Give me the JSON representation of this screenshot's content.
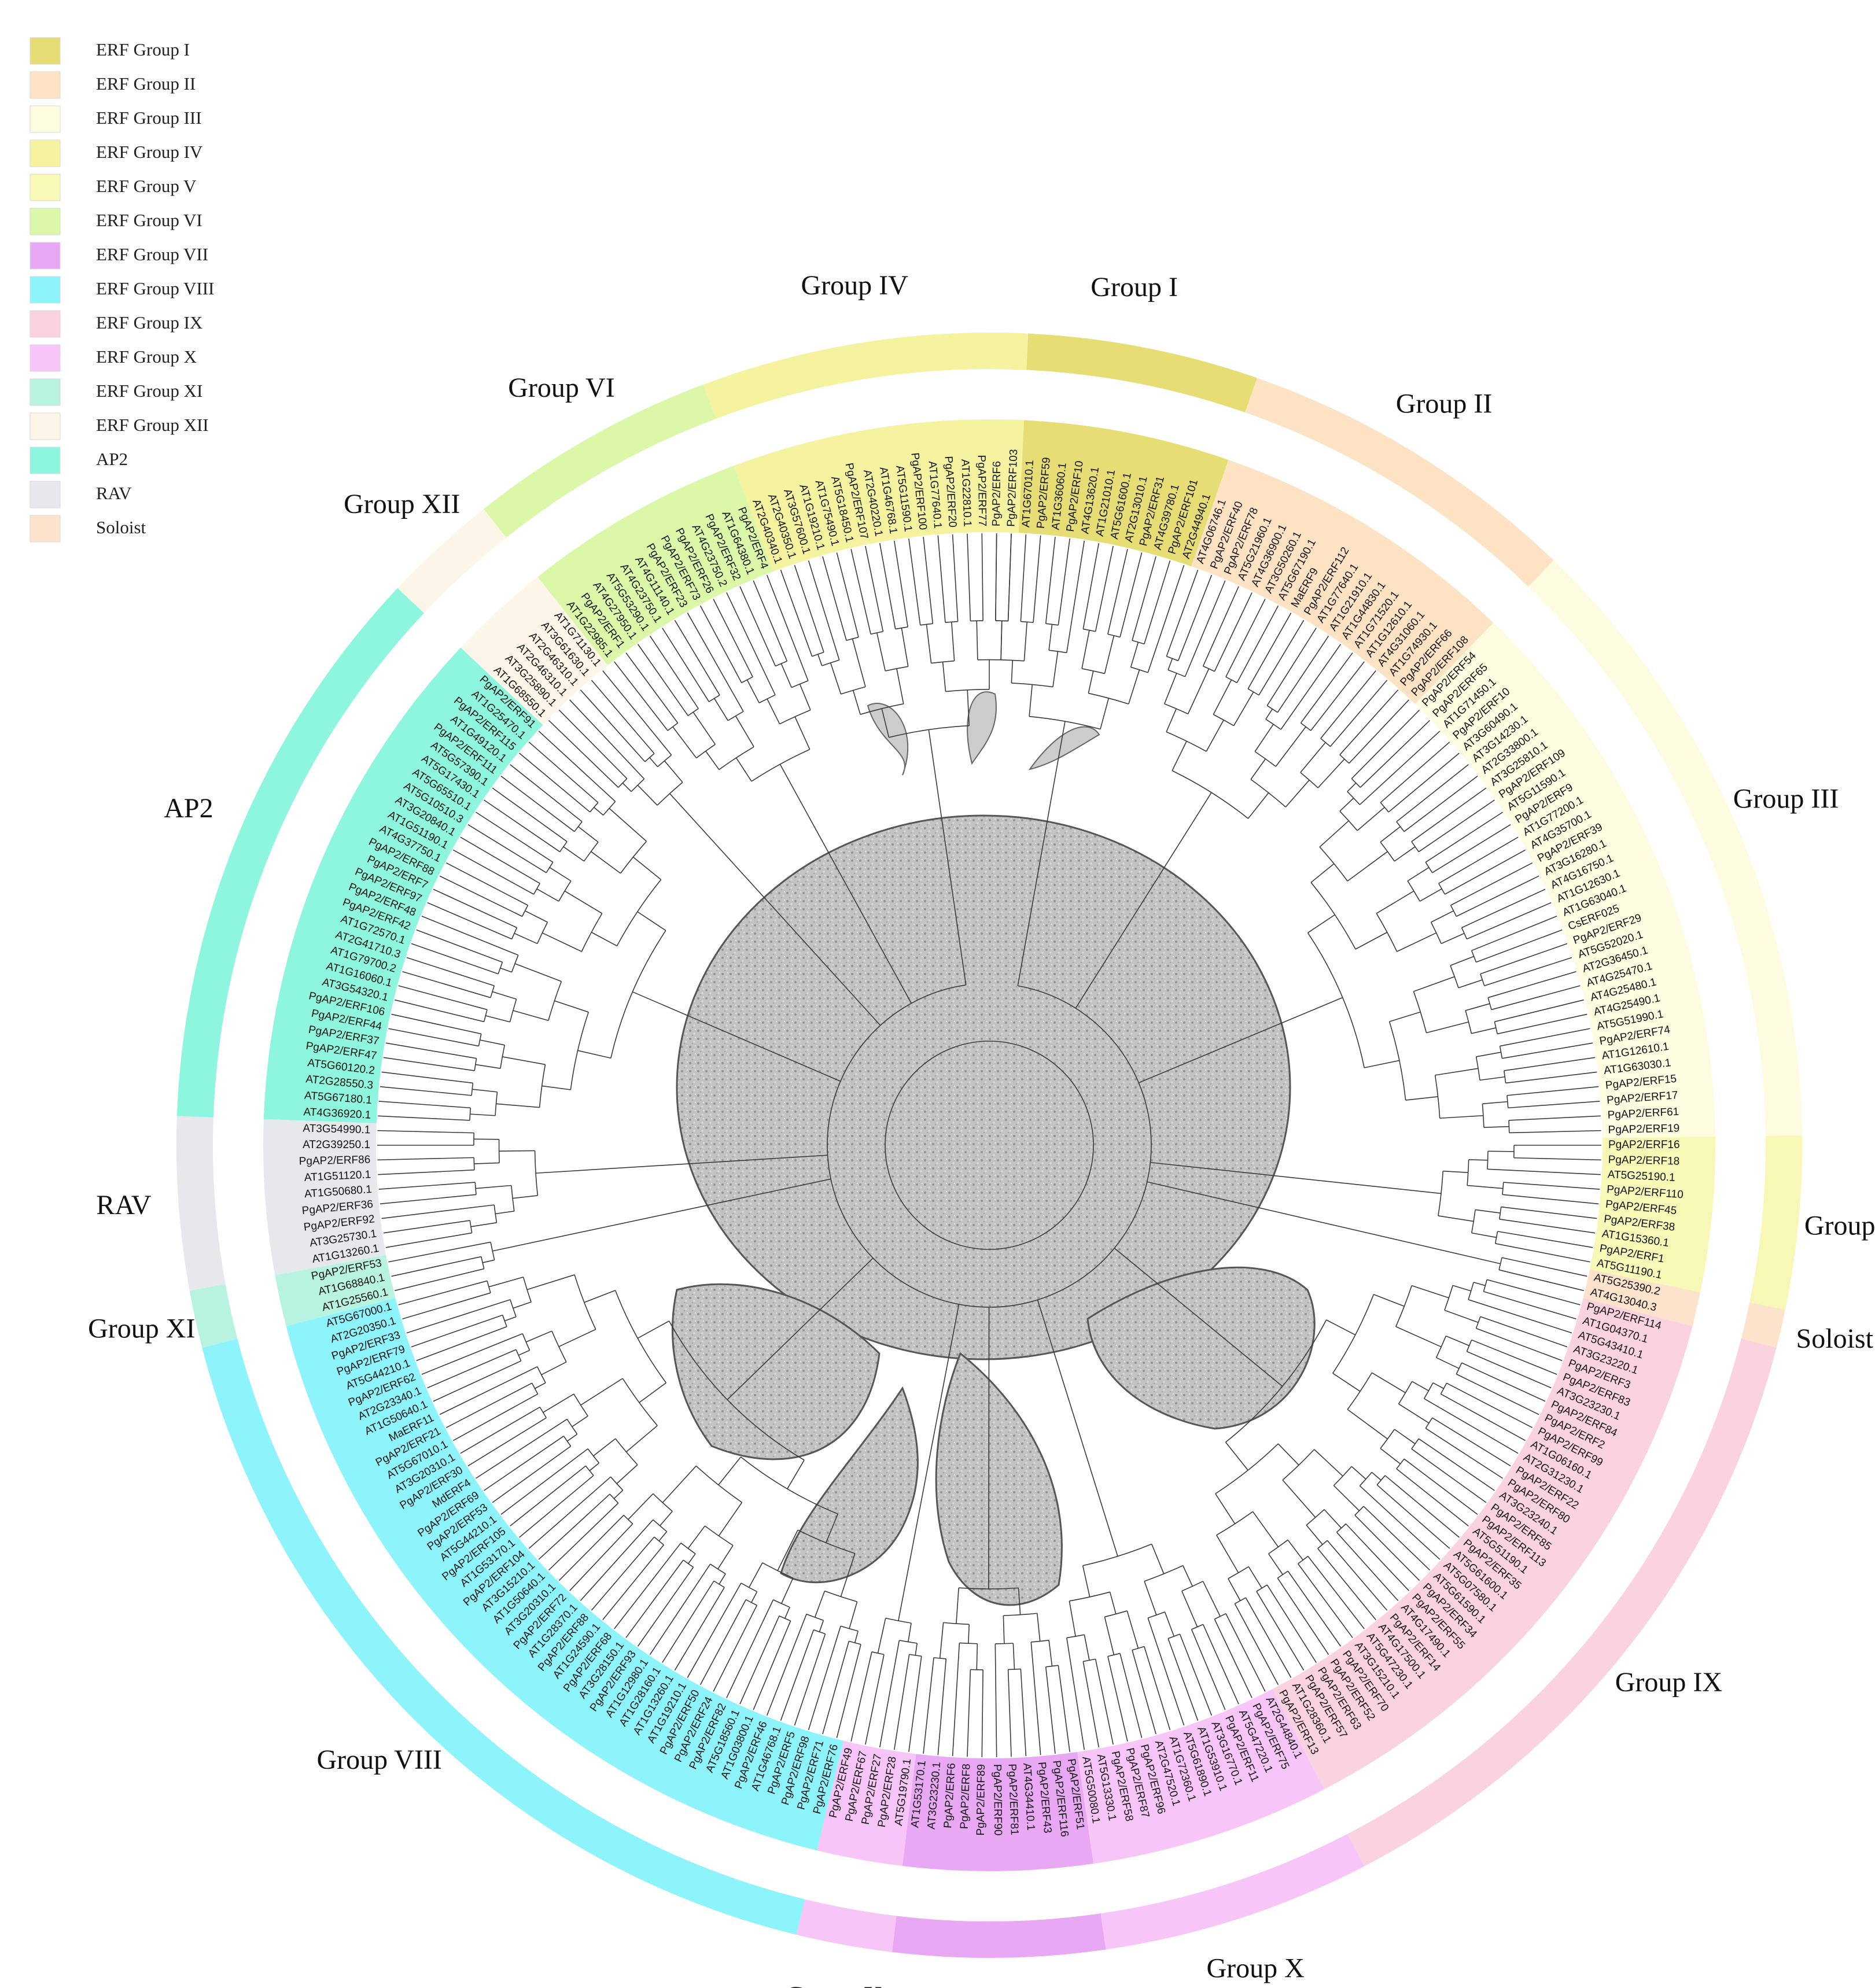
{
  "legend": [
    {
      "label": "ERF Group I",
      "color": "#e6dd74"
    },
    {
      "label": "ERF Group II",
      "color": "#fde3c4"
    },
    {
      "label": "ERF Group III",
      "color": "#fdfbe0"
    },
    {
      "label": "ERF Group IV",
      "color": "#f6f3a0"
    },
    {
      "label": "ERF Group V",
      "color": "#f7f7b6"
    },
    {
      "label": "ERF Group VI",
      "color": "#dbf7a8"
    },
    {
      "label": "ERF Group VII",
      "color": "#e8a8f3"
    },
    {
      "label": "ERF Group VIII",
      "color": "#8ef4fb"
    },
    {
      "label": "ERF Group IX",
      "color": "#fbd3e0"
    },
    {
      "label": "ERF Group X",
      "color": "#f7c5f7"
    },
    {
      "label": "ERF Group XI",
      "color": "#b8f3e2"
    },
    {
      "label": "ERF Group XII",
      "color": "#fdf6e8"
    },
    {
      "label": "AP2",
      "color": "#8ef6de"
    },
    {
      "label": "RAV",
      "color": "#e6e8ec"
    },
    {
      "label": "Soloist",
      "color": "#fde3cc"
    }
  ],
  "groups": [
    {
      "label": "Group I",
      "color": "#e6dd74",
      "count": 14
    },
    {
      "label": "Group  II",
      "color": "#fde3c4",
      "count": 18
    },
    {
      "label": "Group III",
      "color": "#fdfbe0",
      "count": 33
    },
    {
      "label": "Group V",
      "color": "#f7f7b6",
      "count": 9
    },
    {
      "label": "Soloist",
      "color": "#fde3cc",
      "count": 2
    },
    {
      "label": "Group IX",
      "color": "#fbd3e0",
      "count": 35
    },
    {
      "label": "Group X",
      "color": "#f7c5f7",
      "count": 14
    },
    {
      "label": "Group VII",
      "color": "#e8a8f3",
      "count": 11
    },
    {
      "label": "Group X",
      "color": "#f7c5f7",
      "count": 5
    },
    {
      "label": "Group VIII",
      "color": "#8ef4fb",
      "count": 45
    },
    {
      "label": "Group XI",
      "color": "#b8f3e2",
      "count": 3
    },
    {
      "label": "RAV",
      "color": "#e6e8ec",
      "count": 9
    },
    {
      "label": "AP2",
      "color": "#8ef6de",
      "count": 30
    },
    {
      "label": "Group XII",
      "color": "#fdf6e8",
      "count": 6
    },
    {
      "label": "Group VI",
      "color": "#dbf7a8",
      "count": 13
    },
    {
      "label": "Group IV",
      "color": "#f6f3a0",
      "count": 17
    }
  ],
  "leaves": [
    "PgAP2/ERF6",
    "PgAP2/ERF103",
    "AT1G67010.1",
    "PgAP2/ERF59",
    "AT1G36060.1",
    "PgAP2/ERF10",
    "AT4G13620.1",
    "AT1G21010.1",
    "AT5G61600.1",
    "AT2G13010.1",
    "PgAP2/ERF31",
    "AT4G39780.1",
    "PgAP2/ERF101",
    "AT2G44940.1",
    "AT4G06746.1",
    "PgAP2/ERF40",
    "PgAP2/ERF78",
    "AT5G21960.1",
    "AT4G36900.1",
    "AT3G50260.1",
    "AT5G67190.1",
    "MaERF9",
    "PgAP2/ERF112",
    "AT1G77640.1",
    "AT1G21910.1",
    "AT1G44830.1",
    "AT1G71520.1",
    "AT1G12610.1",
    "AT4G31060.1",
    "AT1G74930.1",
    "PgAP2/ERF66",
    "PgAP2/ERF108",
    "PgAP2/ERF54",
    "PgAP2/ERF65",
    "AT1G71450.1",
    "PgAP2/ERF10",
    "AT3G60490.1",
    "AT3G14230.1",
    "AT2G33800.1",
    "AT3G25810.1",
    "PgAP2/ERF109",
    "AT5G11590.1",
    "PgAP2/ERF9",
    "AT1G77200.1",
    "AT4G35700.1",
    "PgAP2/ERF39",
    "AT3G16280.1",
    "AT4G16750.1",
    "AT1G12630.1",
    "AT1G63040.1",
    "CsERF025",
    "PgAP2/ERF29",
    "AT5G52020.1",
    "AT2G36450.1",
    "AT4G25470.1",
    "AT4G25480.1",
    "AT4G25490.1",
    "AT5G51990.1",
    "PgAP2/ERF74",
    "AT1G12610.1",
    "AT1G63030.1",
    "PgAP2/ERF15",
    "PgAP2/ERF17",
    "PgAP2/ERF61",
    "PgAP2/ERF19",
    "PgAP2/ERF16",
    "PgAP2/ERF18",
    "AT5G25190.1",
    "PgAP2/ERF110",
    "PgAP2/ERF45",
    "PgAP2/ERF38",
    "AT1G15360.1",
    "PgAP2/ERF1",
    "AT5G11190.1",
    "AT5G25390.2",
    "AT4G13040.3",
    "PgAP2/ERF114",
    "AT1G04370.1",
    "AT5G43410.1",
    "AT3G23220.1",
    "PgAP2/ERF3",
    "PgAP2/ERF83",
    "AT3G23230.1",
    "PgAP2/ERF84",
    "PgAP2/ERF2",
    "PgAP2/ERF99",
    "AT1G06160.1",
    "AT2G31230.1",
    "PgAP2/ERF22",
    "PgAP2/ERF80",
    "AT3G23240.1",
    "PgAP2/ERF85",
    "PgAP2/ERF113",
    "AT5G51190.1",
    "PgAP2/ERF35",
    "AT5G61600.1",
    "AT5G07580.1",
    "AT5G61590.1",
    "PgAP2/ERF34",
    "PgAP2/ERF55",
    "AT4G17490.1",
    "PgAP2/ERF14",
    "AT4G17500.1",
    "AT5G47230.1",
    "AT3G15210.1",
    "PgAP2/ERF70",
    "PgAP2/ERF52",
    "PgAP2/ERF63",
    "PgAP2/ERF57",
    "AT1G28360.1",
    "PgAP2/ERF13",
    "AT2G44840.1",
    "PgAP2/ERF75",
    "AT5G47220.1",
    "PgAP2/ERF11",
    "AT3G16770.1",
    "AT1G53910.1",
    "AT5G61890.1",
    "AT1G72360.1",
    "AT2G47520.1",
    "PgAP2/ERF96",
    "PgAP2/ERF87",
    "PgAP2/ERF58",
    "AT5G13330.1",
    "AT5G50080.1",
    "PgAP2/ERF51",
    "PgAP2/ERF116",
    "PgAP2/ERF43",
    "AT4G34410.1",
    "PgAP2/ERF81",
    "PgAP2/ERF90",
    "PgAP2/ERF89",
    "PgAP2/ERF8",
    "PgAP2/ERF6",
    "AT3G23230.1",
    "AT1G53170.1",
    "AT5G19790.1",
    "PgAP2/ERF28",
    "PgAP2/ERF27",
    "PgAP2/ERF67",
    "PgAP2/ERF49",
    "PgAP2/ERF76",
    "PgAP2/ERF71",
    "PgAP2/ERF98",
    "PgAP2/ERF5",
    "AT1G46768.1",
    "PgAP2/ERF46",
    "AT1G03800.1",
    "AT5G18560.1",
    "PgAP2/ERF82",
    "PgAP2/ERF24",
    "PgAP2/ERF50",
    "AT1G19210.1",
    "AT1G13260.1",
    "AT1G28160.1",
    "AT1G12980.1",
    "PgAP2/ERF93",
    "AT3G28150.1",
    "PgAP2/ERF68",
    "AT1G24590.1",
    "PgAP2/ERF88",
    "AT1G28370.1",
    "PgAP2/ERF72",
    "AT3G20310.1",
    "AT1G50640.1",
    "AT3G15210.1",
    "PgAP2/ERF104",
    "AT1G53170.1",
    "PgAP2/ERF105",
    "AT5G44210.1",
    "PgAP2/ERF53",
    "PgAP2/ERF69",
    "MdERF4",
    "PgAP2/ERF30",
    "AT3G20310.1",
    "AT5G67010.1",
    "PgAP2/ERF21",
    "MaERF11",
    "AT1G50640.1",
    "AT2G23340.1",
    "PgAP2/ERF62",
    "AT5G44210.1",
    "PgAP2/ERF79",
    "PgAP2/ERF33",
    "AT2G20350.1",
    "AT5G67000.1",
    "AT1G25560.1",
    "AT1G68840.1",
    "PgAP2/ERF53",
    "AT1G13260.1",
    "AT3G25730.1",
    "PgAP2/ERF92",
    "PgAP2/ERF36",
    "AT1G50680.1",
    "AT1G51120.1",
    "PgAP2/ERF86",
    "AT2G39250.1",
    "AT3G54990.1",
    "AT4G36920.1",
    "AT5G67180.1",
    "AT2G28550.3",
    "AT5G60120.2",
    "PgAP2/ERF47",
    "PgAP2/ERF37",
    "PgAP2/ERF44",
    "PgAP2/ERF106",
    "AT3G54320.1",
    "AT1G16060.1",
    "AT1G79700.2",
    "AT2G41710.3",
    "AT1G72570.1",
    "PgAP2/ERF42",
    "PgAP2/ERF48",
    "PgAP2/ERF97",
    "PgAP2/ERF7",
    "PgAP2/ERF88",
    "AT4G37750.1",
    "AT1G51190.1",
    "AT3G20840.1",
    "AT5G10510.3",
    "AT5G65510.1",
    "AT5G17430.1",
    "AT5G57390.1",
    "PgAP2/ERF111",
    "AT1G49120.1",
    "PgAP2/ERF115",
    "AT1G25470.1",
    "PgAP2/ERF91",
    "AT1G68550.1",
    "AT3G25890.1",
    "AT2G46310.1",
    "AT2G46310.1",
    "AT3G61630.1",
    "AT1G71130.1",
    "AT1G22985.1",
    "PgAP2/ERF1",
    "AT4G27950.1",
    "AT5G53290.1",
    "AT4G23750.1",
    "AT4G11140.1",
    "PgAP2/ERF23",
    "PgAP2/ERF73",
    "PgAP2/ERF26",
    "AT4G23750.2",
    "PgAP2/ERF32",
    "AT1G64380.1",
    "PgAP2/ERF4",
    "AT2G40340.1",
    "AT2G40350.1",
    "AT3G57600.1",
    "AT1G19210.1",
    "AT1G75490.1",
    "AT5G18450.1",
    "PgAP2/ERF107",
    "AT2G40220.1",
    "AT1G46768.1",
    "AT5G11590.1",
    "PgAP2/ERF100",
    "AT1G77640.1",
    "PgAP2/ERF20",
    "AT1G22810.1",
    "PgAP2/ERF77"
  ],
  "watermark_note": "pomegranate illustration"
}
